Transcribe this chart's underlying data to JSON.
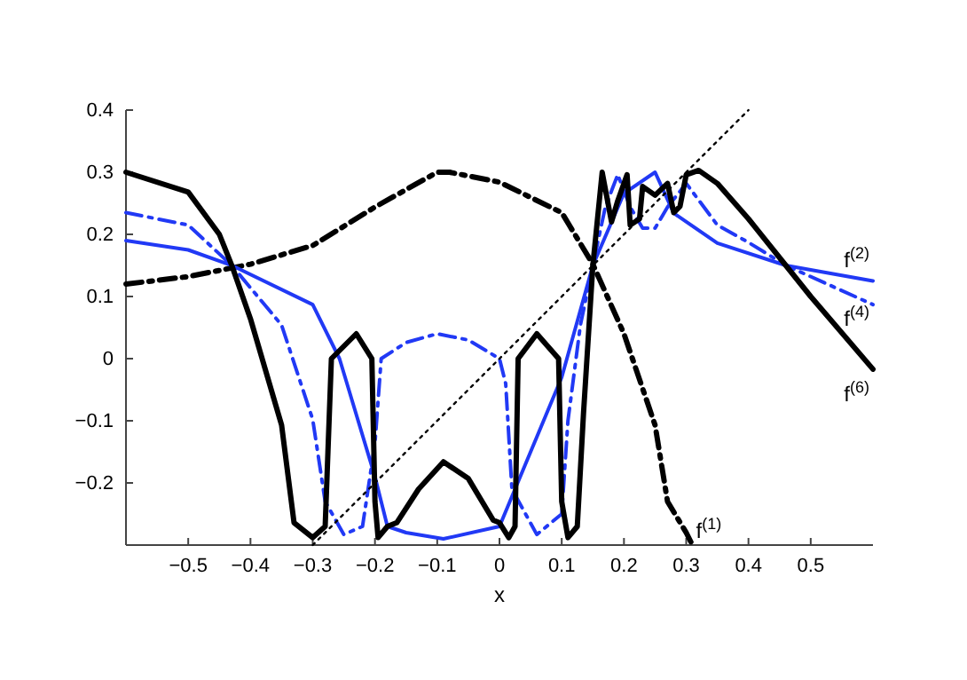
{
  "chart_data": {
    "type": "line",
    "xlabel": "x",
    "xlim": [
      -0.6,
      0.6
    ],
    "ylim": [
      -0.3,
      0.4
    ],
    "xticks": [
      -0.5,
      -0.4,
      -0.3,
      -0.2,
      -0.1,
      0,
      0.1,
      0.2,
      0.3,
      0.4,
      0.5
    ],
    "yticks": [
      -0.2,
      -0.1,
      0,
      0.1,
      0.2,
      0.3,
      0.4
    ],
    "grid": false,
    "legend": false,
    "marker": "none",
    "series": [
      {
        "name": "f$^{(1)}$",
        "color": "#000000",
        "line_style": "dashdot",
        "x": [
          -0.6,
          -0.5,
          -0.4,
          -0.3,
          -0.2,
          -0.1,
          -0.08,
          0,
          0.1,
          0.15,
          0.2,
          0.25,
          0.27,
          0.3,
          0.31
        ],
        "values": [
          0.12,
          0.132,
          0.152,
          0.182,
          0.244,
          0.3,
          0.3,
          0.284,
          0.235,
          0.152,
          0.04,
          -0.107,
          -0.23,
          -0.28,
          -0.3
        ]
      },
      {
        "name": "f$^{(2)}$",
        "color": "#2139f5",
        "line_style": "solid",
        "x": [
          -0.6,
          -0.5,
          -0.43,
          -0.3,
          -0.257,
          -0.2,
          -0.18,
          -0.15,
          -0.09,
          0,
          0.06,
          0.1,
          0.15,
          0.2,
          0.25,
          0.28,
          0.35,
          0.46,
          0.6
        ],
        "values": [
          0.19,
          0.175,
          0.15,
          0.087,
          0,
          -0.19,
          -0.27,
          -0.28,
          -0.29,
          -0.27,
          -0.126,
          -0.03,
          0.15,
          0.266,
          0.3,
          0.234,
          0.186,
          0.15,
          0.125
        ]
      },
      {
        "name": "f$^{(4)}$",
        "color": "#2139f5",
        "line_style": "dashdot",
        "x": [
          -0.6,
          -0.5,
          -0.43,
          -0.35,
          -0.3,
          -0.28,
          -0.25,
          -0.22,
          -0.2,
          -0.19,
          -0.15,
          -0.1,
          -0.05,
          0,
          0.01,
          0.02,
          0.06,
          0.1,
          0.11,
          0.13,
          0.15,
          0.17,
          0.19,
          0.21,
          0.23,
          0.25,
          0.27,
          0.3,
          0.35,
          0.4,
          0.46,
          0.6
        ],
        "values": [
          0.235,
          0.215,
          0.15,
          0.054,
          -0.098,
          -0.23,
          -0.283,
          -0.27,
          -0.136,
          0,
          0.026,
          0.04,
          0.03,
          0,
          -0.04,
          -0.21,
          -0.283,
          -0.25,
          -0.1,
          0.054,
          0.15,
          0.244,
          0.296,
          0.244,
          0.21,
          0.21,
          0.244,
          0.282,
          0.215,
          0.187,
          0.15,
          0.087
        ]
      },
      {
        "name": "f$^{(6)}$",
        "color": "#000000",
        "line_style": "solid",
        "x": [
          -0.6,
          -0.5,
          -0.45,
          -0.43,
          -0.4,
          -0.35,
          -0.33,
          -0.3,
          -0.28,
          -0.27,
          -0.23,
          -0.205,
          -0.2,
          -0.195,
          -0.18,
          -0.165,
          -0.13,
          -0.09,
          -0.05,
          -0.01,
          0,
          0.015,
          0.025,
          0.03,
          0.06,
          0.095,
          0.1,
          0.11,
          0.125,
          0.135,
          0.15,
          0.165,
          0.18,
          0.19,
          0.205,
          0.21,
          0.225,
          0.23,
          0.25,
          0.27,
          0.28,
          0.29,
          0.3,
          0.32,
          0.35,
          0.4,
          0.46,
          0.5,
          0.6
        ],
        "values": [
          0.3,
          0.268,
          0.2,
          0.15,
          0.064,
          -0.107,
          -0.264,
          -0.288,
          -0.27,
          0,
          0.04,
          0,
          -0.23,
          -0.288,
          -0.27,
          -0.264,
          -0.21,
          -0.166,
          -0.193,
          -0.26,
          -0.264,
          -0.288,
          -0.27,
          0,
          0.04,
          0,
          -0.23,
          -0.288,
          -0.27,
          -0.088,
          0.15,
          0.3,
          0.22,
          0.254,
          0.296,
          0.215,
          0.225,
          0.277,
          0.263,
          0.282,
          0.235,
          0.245,
          0.296,
          0.303,
          0.282,
          0.225,
          0.15,
          0.1,
          -0.017
        ]
      },
      {
        "color": "#000000",
        "line_style": "dotted",
        "x": [
          -0.3,
          0.4
        ],
        "values": [
          -0.3,
          0.4
        ]
      }
    ]
  }
}
